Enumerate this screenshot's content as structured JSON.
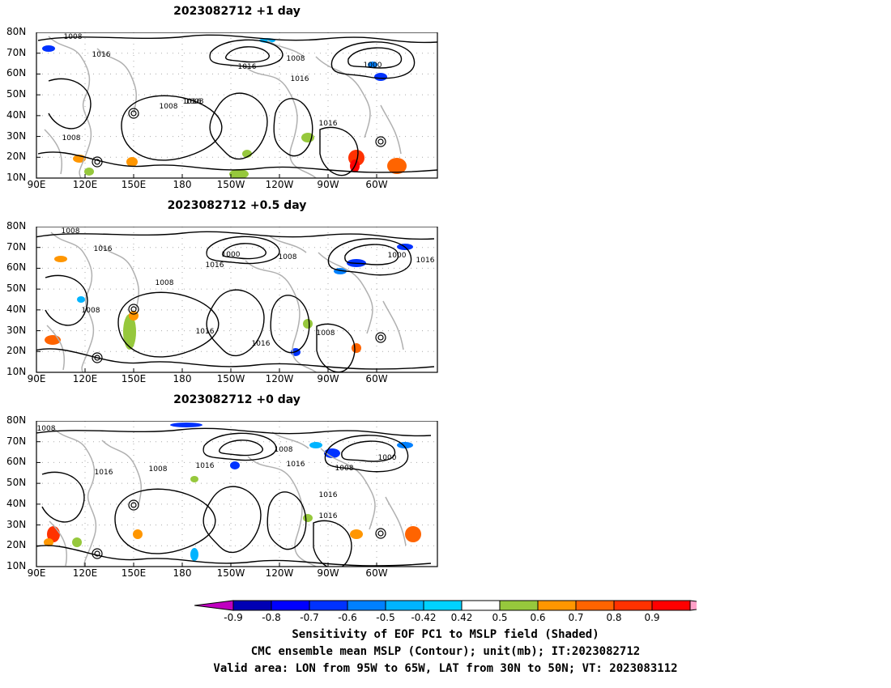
{
  "panels": [
    {
      "title": "2023082712  +1 day",
      "contour_labels": [
        "1008",
        "1016",
        "1008",
        "1016",
        "1008",
        "1016",
        "1016",
        "1016",
        "1008",
        "1000",
        "1008"
      ]
    },
    {
      "title": "2023082712  +0.5 day",
      "contour_labels": [
        "1008",
        "1016",
        "1016",
        "1000",
        "1008",
        "1008",
        "1016",
        "1016",
        "1008",
        "1000",
        "1016",
        "1008"
      ]
    },
    {
      "title": "2023082712  +0 day",
      "contour_labels": [
        "1008",
        "1016",
        "1008",
        "1016",
        "1008",
        "1016",
        "1016",
        "1016",
        "1008",
        "1000"
      ]
    }
  ],
  "map": {
    "lat_ticks": [
      "80N",
      "70N",
      "60N",
      "50N",
      "40N",
      "30N",
      "20N",
      "10N"
    ],
    "lon_ticks": [
      "90E",
      "120E",
      "150E",
      "180",
      "150W",
      "120W",
      "90W",
      "60W"
    ]
  },
  "colorbar": {
    "labels": [
      "-0.9",
      "-0.8",
      "-0.7",
      "-0.6",
      "-0.5",
      "-0.42",
      "0.42",
      "0.5",
      "0.6",
      "0.7",
      "0.8",
      "0.9"
    ],
    "colors": [
      "#c000c0",
      "#0000b4",
      "#0000ff",
      "#0032ff",
      "#0080ff",
      "#00b4ff",
      "#00d2ff",
      "#ffffff",
      "#96c83c",
      "#ff9600",
      "#ff6400",
      "#ff3200",
      "#ff0000",
      "#ffa0c8"
    ]
  },
  "caption": {
    "line1": "Sensitivity of EOF PC1 to MSLP field (Shaded)",
    "line2": "CMC ensemble mean MSLP (Contour); unit(mb); IT:2023082712",
    "line3": "Valid area: LON from 95W to 65W, LAT from 30N to 50N; VT: 2023083112"
  }
}
